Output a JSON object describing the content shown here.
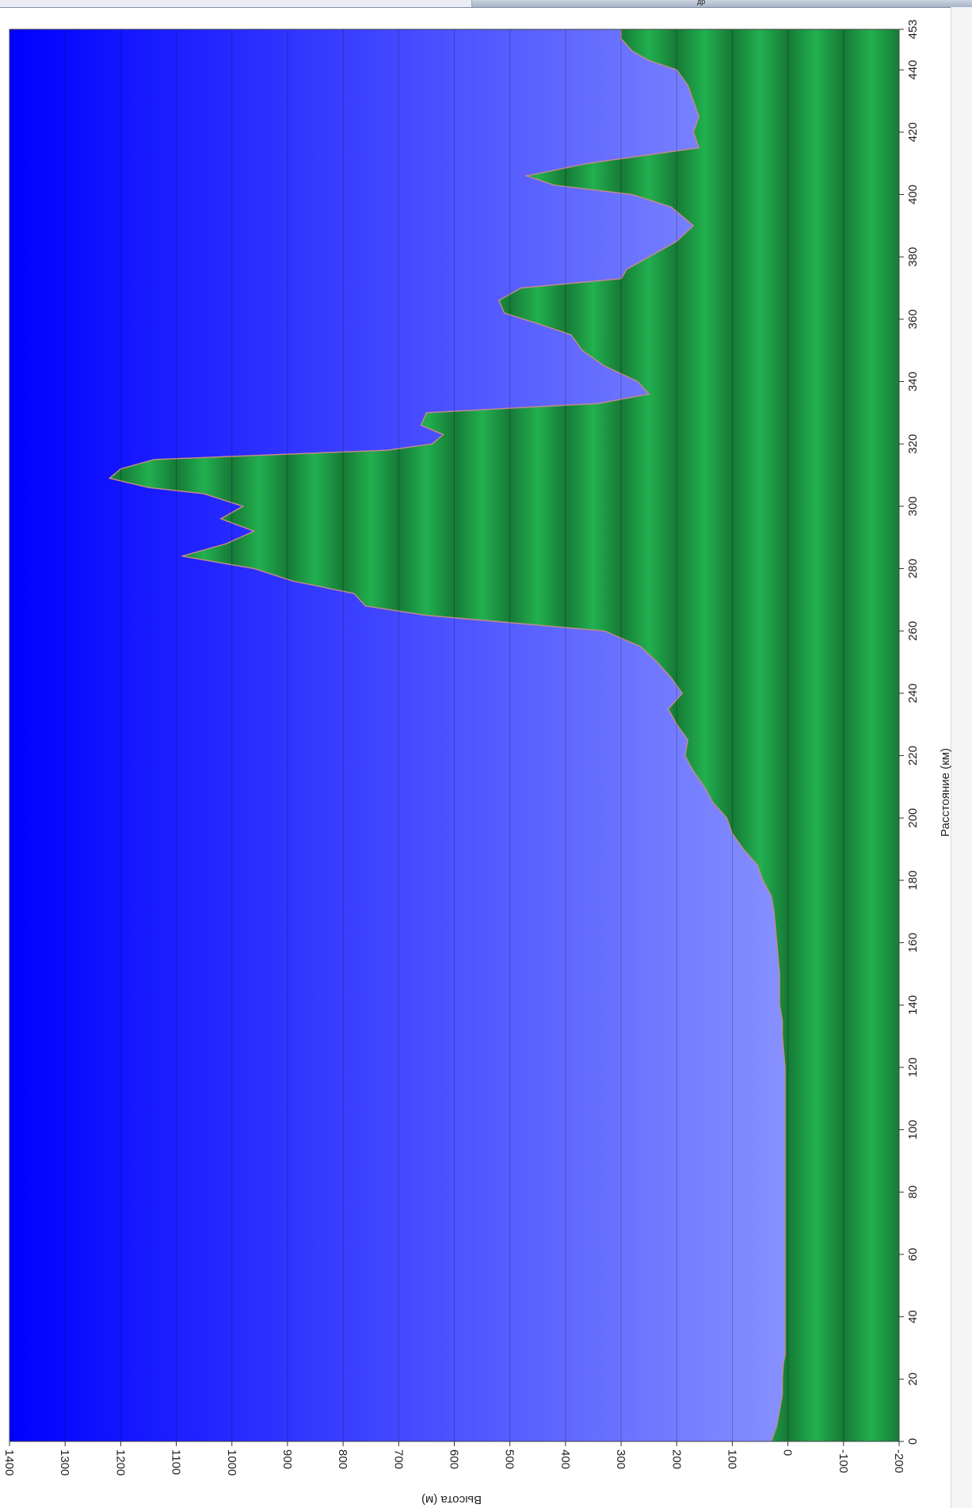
{
  "window": {
    "caption": "др"
  },
  "chart_data": {
    "type": "area",
    "orientation": "rotated-90-clockwise",
    "xlabel": "Расстояние (км)",
    "ylabel": "Высота (м)",
    "xlim": [
      0,
      453
    ],
    "ylim": [
      -200,
      1400
    ],
    "x_ticks": [
      0,
      20,
      40,
      60,
      80,
      100,
      120,
      140,
      160,
      180,
      200,
      220,
      240,
      260,
      280,
      300,
      320,
      340,
      360,
      380,
      400,
      420,
      440,
      453
    ],
    "x_tick_labels": [
      "0",
      "20",
      "40",
      "60",
      "80",
      "100",
      "120",
      "140",
      "160",
      "180",
      "200",
      "220",
      "240",
      "260",
      "280",
      "300",
      "320",
      "340",
      "360",
      "380",
      "400",
      "420",
      "440",
      "453"
    ],
    "y_ticks": [
      -200,
      -100,
      0,
      100,
      200,
      300,
      400,
      500,
      600,
      700,
      800,
      900,
      1000,
      1100,
      1200,
      1300,
      1400
    ],
    "y_tick_labels": [
      "-200",
      "-100",
      "0",
      "100",
      "200",
      "300",
      "400",
      "500",
      "600",
      "700",
      "800",
      "900",
      "1000",
      "1100",
      "1200",
      "1300",
      "1400"
    ],
    "grid": true,
    "colors": {
      "terrain": "#1f9c46",
      "terrain_light": "#22b04f",
      "terrain_dark": "#167a36",
      "sky_light": "#9aa6ff",
      "sky_dark": "#0000ff",
      "outline": "#c08a8a"
    },
    "series": [
      {
        "name": "",
        "x": [
          0,
          5,
          10,
          15,
          20,
          25,
          28,
          30,
          35,
          40,
          50,
          60,
          70,
          80,
          90,
          100,
          110,
          120,
          130,
          135,
          140,
          150,
          160,
          170,
          175,
          180,
          185,
          190,
          195,
          200,
          205,
          210,
          215,
          220,
          225,
          230,
          235,
          240,
          245,
          250,
          255,
          260,
          265,
          268,
          272,
          276,
          280,
          284,
          288,
          292,
          296,
          300,
          304,
          306,
          309,
          312,
          315,
          318,
          320,
          323,
          326,
          330,
          333,
          336,
          340,
          345,
          350,
          355,
          358,
          362,
          366,
          370,
          373,
          376,
          380,
          385,
          390,
          393,
          396,
          400,
          403,
          406,
          410,
          415,
          420,
          425,
          430,
          435,
          440,
          443,
          446,
          450,
          453
        ],
        "y": [
          30,
          20,
          15,
          10,
          10,
          8,
          5,
          5,
          5,
          5,
          5,
          5,
          5,
          5,
          5,
          5,
          5,
          5,
          10,
          10,
          15,
          15,
          20,
          25,
          30,
          45,
          55,
          80,
          100,
          110,
          135,
          150,
          170,
          185,
          180,
          200,
          215,
          190,
          210,
          235,
          265,
          330,
          650,
          760,
          780,
          890,
          960,
          1090,
          1010,
          960,
          1020,
          980,
          1050,
          1150,
          1220,
          1200,
          1140,
          720,
          640,
          620,
          660,
          650,
          340,
          250,
          270,
          330,
          370,
          390,
          440,
          510,
          520,
          480,
          300,
          290,
          250,
          200,
          170,
          190,
          210,
          280,
          420,
          470,
          360,
          160,
          170,
          160,
          170,
          180,
          200,
          250,
          280,
          300,
          300
        ]
      }
    ]
  }
}
